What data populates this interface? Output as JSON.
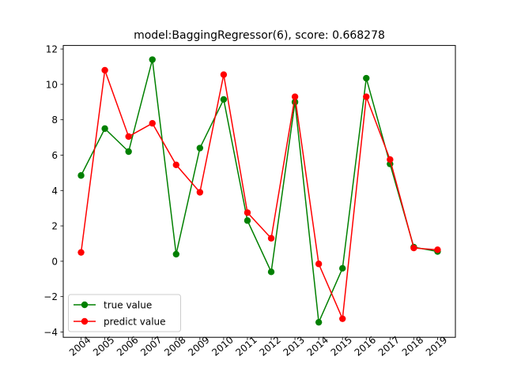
{
  "chart_data": {
    "type": "line",
    "title": "model:BaggingRegressor(6), score: 0.668278",
    "xlabel": "",
    "ylabel": "",
    "x": [
      "2004",
      "2005",
      "2006",
      "2007",
      "2008",
      "2009",
      "2010",
      "2011",
      "2012",
      "2013",
      "2014",
      "2015",
      "2016",
      "2017",
      "2018",
      "2019"
    ],
    "ylim": [
      -4.3,
      12.2
    ],
    "yticks": [
      -4,
      -2,
      0,
      2,
      4,
      6,
      8,
      10,
      12
    ],
    "grid": false,
    "legend_position": "lower-left",
    "series": [
      {
        "name": "true value",
        "color": "#008000",
        "values": [
          4.85,
          7.5,
          6.2,
          11.4,
          0.4,
          6.4,
          9.15,
          2.3,
          -0.6,
          9.0,
          -3.45,
          -0.4,
          10.35,
          5.5,
          0.8,
          0.55
        ]
      },
      {
        "name": "predict value",
        "color": "#ff0000",
        "values": [
          0.5,
          10.8,
          7.05,
          7.8,
          5.45,
          3.9,
          10.55,
          2.75,
          1.3,
          9.3,
          -0.15,
          -3.25,
          9.3,
          5.75,
          0.75,
          0.65
        ]
      }
    ]
  }
}
